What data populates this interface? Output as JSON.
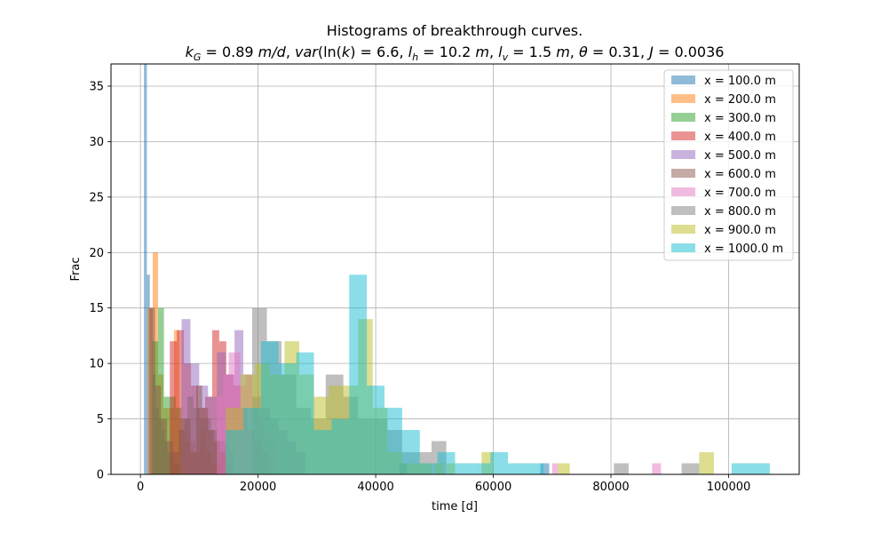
{
  "chart_data": {
    "type": "bar",
    "title_line1": "Histograms of breakthrough curves.",
    "title_line2": {
      "kG_sym": "k",
      "kG_sub": "G",
      "kG_val": " = 0.89 ",
      "kG_unit": "m/d",
      "var_fn": "var",
      "var_mid": "(ln(",
      "var_k": "k",
      "var_val": ") = 6.6, ",
      "lh_sym": "l",
      "lh_sub": "h",
      "lh_val": " = 10.2 ",
      "lh_unit": "m",
      "lv_sym": "l",
      "lv_sub": "v",
      "lv_val": " = 1.5 ",
      "lv_unit": "m",
      "theta_sym": "θ",
      "theta_val": " = 0.31, ",
      "J_sym": "J",
      "J_val": " = 0.0036"
    },
    "xlabel": "time [d]",
    "ylabel": "Frac",
    "xlim": [
      -5000,
      112000
    ],
    "ylim": [
      0,
      37
    ],
    "xticks": [
      0,
      20000,
      40000,
      60000,
      80000,
      100000
    ],
    "xtick_labels": [
      "0",
      "20000",
      "40000",
      "60000",
      "80000",
      "100000"
    ],
    "yticks": [
      0,
      5,
      10,
      15,
      20,
      25,
      30,
      35
    ],
    "ytick_labels": [
      "0",
      "5",
      "10",
      "15",
      "20",
      "25",
      "30",
      "35"
    ],
    "grid": true,
    "legend_position": "top-right",
    "series": [
      {
        "name": "x = 100.0 m",
        "color": "#1f77b4",
        "bins": [
          [
            600,
            1100,
            37
          ],
          [
            1100,
            1600,
            18
          ],
          [
            1600,
            2100,
            15
          ],
          [
            2100,
            2600,
            9
          ],
          [
            2600,
            3100,
            6
          ],
          [
            3100,
            3600,
            5
          ],
          [
            3600,
            4100,
            4
          ],
          [
            4100,
            4600,
            3
          ],
          [
            4600,
            5100,
            2
          ],
          [
            5100,
            5600,
            2
          ],
          [
            5600,
            6100,
            1
          ],
          [
            6100,
            6600,
            1
          ],
          [
            44000,
            45300,
            1
          ],
          [
            68000,
            69500,
            1
          ]
        ]
      },
      {
        "name": "x = 200.0 m",
        "color": "#ff7f0e",
        "bins": [
          [
            1200,
            2100,
            15
          ],
          [
            2100,
            3000,
            20
          ],
          [
            3000,
            3900,
            9
          ],
          [
            3900,
            4800,
            6
          ],
          [
            4800,
            5700,
            6
          ],
          [
            5700,
            6600,
            13
          ],
          [
            6600,
            7500,
            5
          ],
          [
            7500,
            8400,
            3
          ],
          [
            8400,
            9300,
            3
          ],
          [
            9300,
            10200,
            2
          ],
          [
            10200,
            11100,
            4
          ],
          [
            11100,
            12000,
            2
          ],
          [
            12000,
            12900,
            1
          ],
          [
            12900,
            13800,
            1
          ]
        ]
      },
      {
        "name": "x = 300.0 m",
        "color": "#2ca02c",
        "bins": [
          [
            2000,
            3000,
            12
          ],
          [
            3000,
            4000,
            15
          ],
          [
            4000,
            5000,
            7
          ],
          [
            5000,
            6000,
            7
          ],
          [
            6000,
            7000,
            6
          ],
          [
            7000,
            8000,
            5
          ],
          [
            8000,
            9000,
            7
          ],
          [
            9000,
            10000,
            6
          ],
          [
            10000,
            11000,
            5
          ],
          [
            11000,
            12000,
            5
          ],
          [
            12000,
            13000,
            4
          ],
          [
            13000,
            14000,
            3
          ],
          [
            14000,
            15000,
            3
          ],
          [
            15000,
            16000,
            2
          ]
        ]
      },
      {
        "name": "x = 400.0 m",
        "color": "#d62728",
        "bins": [
          [
            5000,
            6200,
            12
          ],
          [
            6200,
            7400,
            13
          ],
          [
            7400,
            8600,
            10
          ],
          [
            8600,
            9800,
            8
          ],
          [
            9800,
            11000,
            6
          ],
          [
            11000,
            12200,
            7
          ],
          [
            12200,
            13400,
            13
          ],
          [
            13400,
            14600,
            12
          ],
          [
            14600,
            15800,
            9
          ],
          [
            15800,
            17000,
            8
          ],
          [
            17000,
            18200,
            6
          ],
          [
            18200,
            19400,
            4
          ],
          [
            19400,
            20600,
            3
          ],
          [
            20600,
            21800,
            2
          ]
        ]
      },
      {
        "name": "x = 500.0 m",
        "color": "#9467bd",
        "bins": [
          [
            7000,
            8500,
            14
          ],
          [
            8500,
            10000,
            10
          ],
          [
            10000,
            11500,
            8
          ],
          [
            11500,
            13000,
            7
          ],
          [
            13000,
            14500,
            11
          ],
          [
            14500,
            16000,
            9
          ],
          [
            16000,
            17500,
            13
          ],
          [
            17500,
            19000,
            9
          ],
          [
            19000,
            20500,
            7
          ],
          [
            20500,
            22000,
            6
          ],
          [
            22000,
            23500,
            5
          ],
          [
            23500,
            25000,
            4
          ],
          [
            25000,
            26500,
            3
          ],
          [
            26500,
            28000,
            2
          ]
        ]
      },
      {
        "name": "x = 600.0 m",
        "color": "#8c564b",
        "bins": [
          [
            1500,
            2500,
            15
          ],
          [
            2500,
            3500,
            8
          ],
          [
            3500,
            4500,
            5
          ],
          [
            4500,
            5500,
            3
          ],
          [
            5500,
            6500,
            2
          ],
          [
            6500,
            7500,
            4
          ],
          [
            7500,
            8500,
            5
          ],
          [
            8500,
            9500,
            2
          ],
          [
            9500,
            10500,
            8
          ],
          [
            10500,
            11500,
            6
          ],
          [
            11500,
            12500,
            4
          ],
          [
            12500,
            13500,
            3
          ],
          [
            13500,
            14500,
            2
          ],
          [
            14500,
            15500,
            1
          ]
        ]
      },
      {
        "name": "x = 700.0 m",
        "color": "#e377c2",
        "bins": [
          [
            13000,
            14000,
            7
          ],
          [
            14000,
            15000,
            9
          ],
          [
            15000,
            16000,
            11
          ],
          [
            16000,
            17000,
            11
          ],
          [
            17000,
            18000,
            8
          ],
          [
            18000,
            19000,
            9
          ],
          [
            19000,
            20000,
            6
          ],
          [
            20000,
            21000,
            5
          ],
          [
            21000,
            22000,
            4
          ],
          [
            22000,
            23000,
            3
          ],
          [
            70000,
            71000,
            1
          ],
          [
            87000,
            88500,
            1
          ]
        ]
      },
      {
        "name": "x = 800.0 m",
        "color": "#7f7f7f",
        "bins": [
          [
            19000,
            21500,
            15
          ],
          [
            21500,
            24000,
            12
          ],
          [
            24000,
            26500,
            9
          ],
          [
            26500,
            29000,
            6
          ],
          [
            29000,
            31500,
            5
          ],
          [
            31500,
            34500,
            9
          ],
          [
            34500,
            37000,
            7
          ],
          [
            37000,
            39500,
            5
          ],
          [
            39500,
            42000,
            5
          ],
          [
            42000,
            44500,
            4
          ],
          [
            44500,
            47000,
            2
          ],
          [
            47000,
            49500,
            2
          ],
          [
            49500,
            52000,
            3
          ],
          [
            80500,
            83000,
            1
          ],
          [
            92000,
            95000,
            1
          ]
        ]
      },
      {
        "name": "x = 900.0 m",
        "color": "#bcbd22",
        "bins": [
          [
            14500,
            17000,
            6
          ],
          [
            17000,
            19500,
            9
          ],
          [
            19500,
            22000,
            10
          ],
          [
            22000,
            24500,
            9
          ],
          [
            24500,
            27000,
            12
          ],
          [
            27000,
            29500,
            9
          ],
          [
            29500,
            32000,
            7
          ],
          [
            32000,
            34500,
            8
          ],
          [
            34500,
            37000,
            8
          ],
          [
            37000,
            39500,
            14
          ],
          [
            39500,
            42000,
            6
          ],
          [
            42000,
            44500,
            2
          ],
          [
            44500,
            47000,
            1
          ],
          [
            47000,
            49500,
            1
          ],
          [
            50000,
            51500,
            1
          ],
          [
            52000,
            53500,
            1
          ],
          [
            58000,
            60000,
            2
          ],
          [
            71000,
            73000,
            1
          ],
          [
            95000,
            97500,
            2
          ]
        ]
      },
      {
        "name": "x = 1000.0 m",
        "color": "#17becf",
        "bins": [
          [
            14500,
            17500,
            4
          ],
          [
            17500,
            20500,
            6
          ],
          [
            20500,
            23500,
            12
          ],
          [
            23500,
            26500,
            10
          ],
          [
            26500,
            29500,
            11
          ],
          [
            29500,
            32500,
            4
          ],
          [
            32500,
            35500,
            5
          ],
          [
            35500,
            38500,
            18
          ],
          [
            38500,
            41500,
            8
          ],
          [
            41500,
            44500,
            6
          ],
          [
            44500,
            47500,
            4
          ],
          [
            47500,
            50500,
            1
          ],
          [
            50500,
            53500,
            2
          ],
          [
            53500,
            56500,
            1
          ],
          [
            56500,
            59500,
            1
          ],
          [
            59500,
            62500,
            2
          ],
          [
            62500,
            65500,
            1
          ],
          [
            65500,
            68500,
            1
          ],
          [
            100500,
            107000,
            1
          ]
        ]
      }
    ]
  }
}
